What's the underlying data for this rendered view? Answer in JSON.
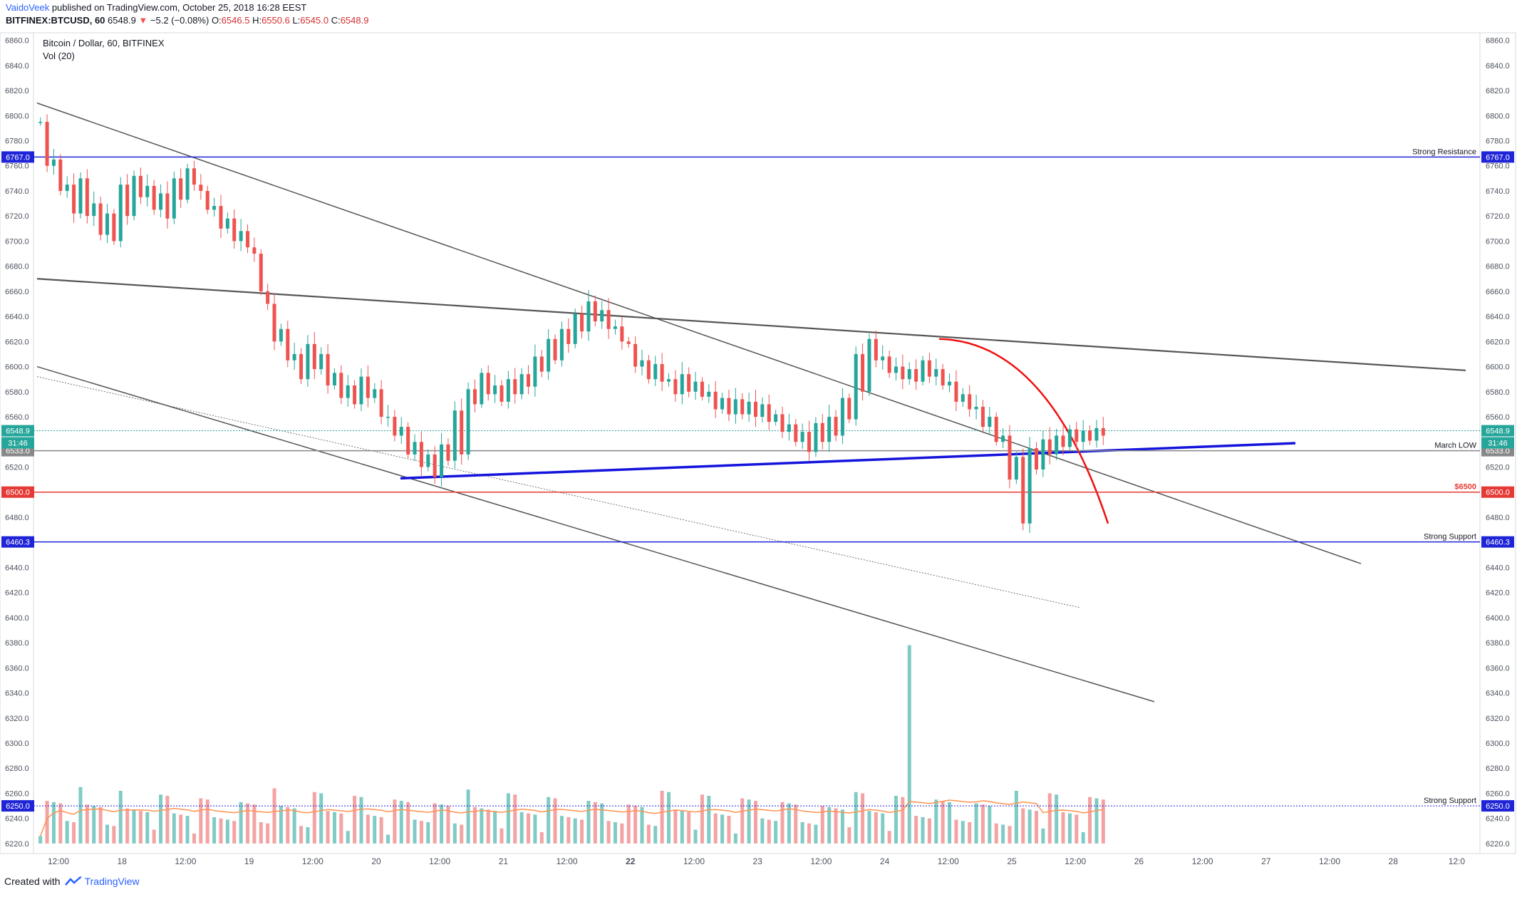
{
  "header": {
    "author": "VaidoVeek",
    "published_text": "published on TradingView.com, October 25, 2018 16:28 EEST",
    "symbol": "BITFINEX:BTCUSD, 60",
    "last": "6548.9",
    "change_arrow": "▼",
    "change": "−5.2 (−0.08%)",
    "o_label": "O:",
    "o_value": "6546.5",
    "h_label": "H:",
    "h_value": "6550.6",
    "l_label": "L:",
    "l_value": "6545.0",
    "c_label": "C:",
    "c_value": "6548.9"
  },
  "chart_data": {
    "type": "candlestick",
    "title": "Bitcoin / Dollar, 60, BITFINEX",
    "subtitle": "Vol (20)",
    "colors": {
      "up": "#26a69a",
      "down": "#ef5350",
      "vol_up": "#80cbc4",
      "vol_down": "#f4a3a3",
      "vol_ma": "#ff9350",
      "trend_gray": "#555555",
      "trend_blue": "#1414dc",
      "curve_red": "#ee1111",
      "level_blue": "#1f24d6",
      "level_red": "#e53935",
      "gray": "#888888"
    },
    "y_range": [
      6212,
      6866
    ],
    "y_ticks": [
      6220,
      6240,
      6260,
      6280,
      6300,
      6320,
      6340,
      6360,
      6380,
      6400,
      6420,
      6440,
      6460,
      6480,
      6500,
      6520,
      6540,
      6560,
      6580,
      6600,
      6620,
      6640,
      6660,
      6680,
      6700,
      6720,
      6740,
      6760,
      6780,
      6800,
      6820,
      6840,
      6860
    ],
    "x_labels": [
      "12:00",
      "18",
      "12:00",
      "19",
      "12:00",
      "20",
      "12:00",
      "21",
      "12:00",
      "22",
      "12:00",
      "23",
      "12:00",
      "24",
      "12:00",
      "25",
      "12:00",
      "26",
      "12:00",
      "27",
      "12:00",
      "28",
      "12:0"
    ],
    "x_label_bold": [
      "22"
    ],
    "price_path": [
      [
        6795,
        6760
      ],
      [
        6765,
        6740
      ],
      [
        6745,
        6722
      ],
      [
        6750,
        6720
      ],
      [
        6730,
        6705
      ],
      [
        6722,
        6700
      ],
      [
        6745,
        6720
      ],
      [
        6752,
        6735
      ],
      [
        6744,
        6725
      ],
      [
        6738,
        6718
      ],
      [
        6750,
        6733
      ],
      [
        6758,
        6745
      ],
      [
        6740,
        6725
      ],
      [
        6728,
        6710
      ],
      [
        6718,
        6700
      ],
      [
        6708,
        6695
      ],
      [
        6690,
        6660
      ],
      [
        6650,
        6620
      ],
      [
        6630,
        6605
      ],
      [
        6610,
        6590
      ],
      [
        6618,
        6598
      ],
      [
        6610,
        6585
      ],
      [
        6595,
        6575
      ],
      [
        6585,
        6570
      ],
      [
        6592,
        6575
      ],
      [
        6582,
        6560
      ],
      [
        6560,
        6545
      ],
      [
        6552,
        6530
      ],
      [
        6540,
        6520
      ],
      [
        6530,
        6512
      ],
      [
        6538,
        6525
      ],
      [
        6565,
        6530
      ],
      [
        6582,
        6570
      ],
      [
        6595,
        6578
      ],
      [
        6585,
        6572
      ],
      [
        6590,
        6578
      ],
      [
        6594,
        6584
      ],
      [
        6608,
        6596
      ],
      [
        6622,
        6605
      ],
      [
        6630,
        6618
      ],
      [
        6642,
        6628
      ],
      [
        6652,
        6636
      ],
      [
        6645,
        6630
      ],
      [
        6632,
        6620
      ],
      [
        6618,
        6600
      ],
      [
        6605,
        6590
      ],
      [
        6602,
        6588
      ],
      [
        6590,
        6578
      ],
      [
        6594,
        6580
      ],
      [
        6588,
        6576
      ],
      [
        6580,
        6566
      ],
      [
        6575,
        6562
      ],
      [
        6574,
        6562
      ],
      [
        6572,
        6560
      ],
      [
        6570,
        6556
      ],
      [
        6562,
        6548
      ],
      [
        6554,
        6540
      ],
      [
        6548,
        6532
      ],
      [
        6555,
        6540
      ],
      [
        6560,
        6545
      ],
      [
        6575,
        6558
      ],
      [
        6610,
        6580
      ],
      [
        6622,
        6605
      ],
      [
        6608,
        6595
      ],
      [
        6600,
        6590
      ],
      [
        6598,
        6588
      ],
      [
        6605,
        6592
      ],
      [
        6598,
        6585
      ],
      [
        6588,
        6572
      ],
      [
        6578,
        6566
      ],
      [
        6568,
        6552
      ],
      [
        6560,
        6540
      ],
      [
        6545,
        6510
      ],
      [
        6528,
        6475
      ],
      [
        6535,
        6518
      ],
      [
        6542,
        6530
      ],
      [
        6545,
        6536
      ],
      [
        6550,
        6540
      ],
      [
        6549,
        6541
      ],
      [
        6551,
        6545
      ]
    ],
    "volume": {
      "ma_period": 20,
      "spike_value": 6378,
      "base_value": 6220
    },
    "horizontal_levels": [
      {
        "price": 6767.0,
        "label": "Strong Resistance",
        "tag": "6767.0",
        "style": "solid",
        "color": "#1f24d6"
      },
      {
        "price": 6548.9,
        "label": "",
        "tag": "6548.9",
        "style": "dotted",
        "color": "#26a69a"
      },
      {
        "price": 6533.0,
        "label": "March LOW",
        "tag": "6533.0",
        "style": "solid",
        "color": "#888888"
      },
      {
        "price": 6500.0,
        "label": "$6500",
        "tag": "6500.0",
        "style": "solid",
        "color": "#e53935"
      },
      {
        "price": 6460.3,
        "label": "Strong Support",
        "tag": "6460.3",
        "style": "solid",
        "color": "#1f24d6"
      },
      {
        "price": 6250.0,
        "label": "Strong Support",
        "tag": "6250.0",
        "style": "dotted",
        "color": "#1f24d6"
      }
    ],
    "countdown_tag": "31:46"
  },
  "footer": {
    "created_with": "Created with",
    "brand": "TradingView"
  }
}
